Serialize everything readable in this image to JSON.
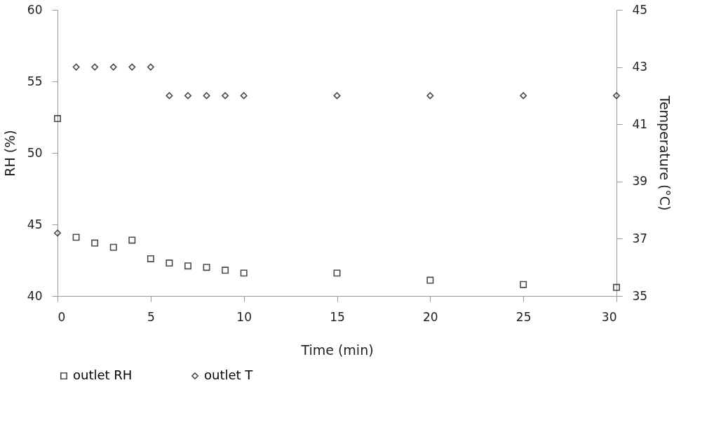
{
  "chart_data": {
    "type": "scatter",
    "xlabel": "Time (min)",
    "ylabel": "RH (%)",
    "y2label": "Temperature (°C)",
    "x": [
      0,
      1,
      2,
      3,
      4,
      5,
      6,
      7,
      8,
      9,
      10,
      15,
      20,
      25,
      30
    ],
    "series": [
      {
        "name": "outlet RH",
        "color": "#000000",
        "marker": "square",
        "values": [
          52.4,
          44.1,
          43.7,
          43.4,
          43.9,
          42.6,
          42.3,
          42.1,
          42.0,
          41.8,
          41.6,
          41.6,
          41.1,
          40.8,
          40.6
        ]
      },
      {
        "name": "outlet T",
        "color": "#000000",
        "marker": "diamond",
        "axis": "y2",
        "values": [
          37.2,
          43,
          43,
          43,
          43,
          43,
          42,
          42,
          42,
          42,
          42,
          42,
          42,
          42,
          42
        ]
      }
    ],
    "xlim": [
      0,
      30
    ],
    "xticks": [
      0,
      5,
      10,
      15,
      20,
      25,
      30
    ],
    "ylim": [
      40,
      60
    ],
    "yticks": [
      40,
      45,
      50,
      55,
      60
    ],
    "y2lim": [
      35,
      45
    ],
    "y2ticks": [
      35,
      37,
      39,
      41,
      43,
      45
    ],
    "grid": false,
    "legend": "bottom"
  }
}
